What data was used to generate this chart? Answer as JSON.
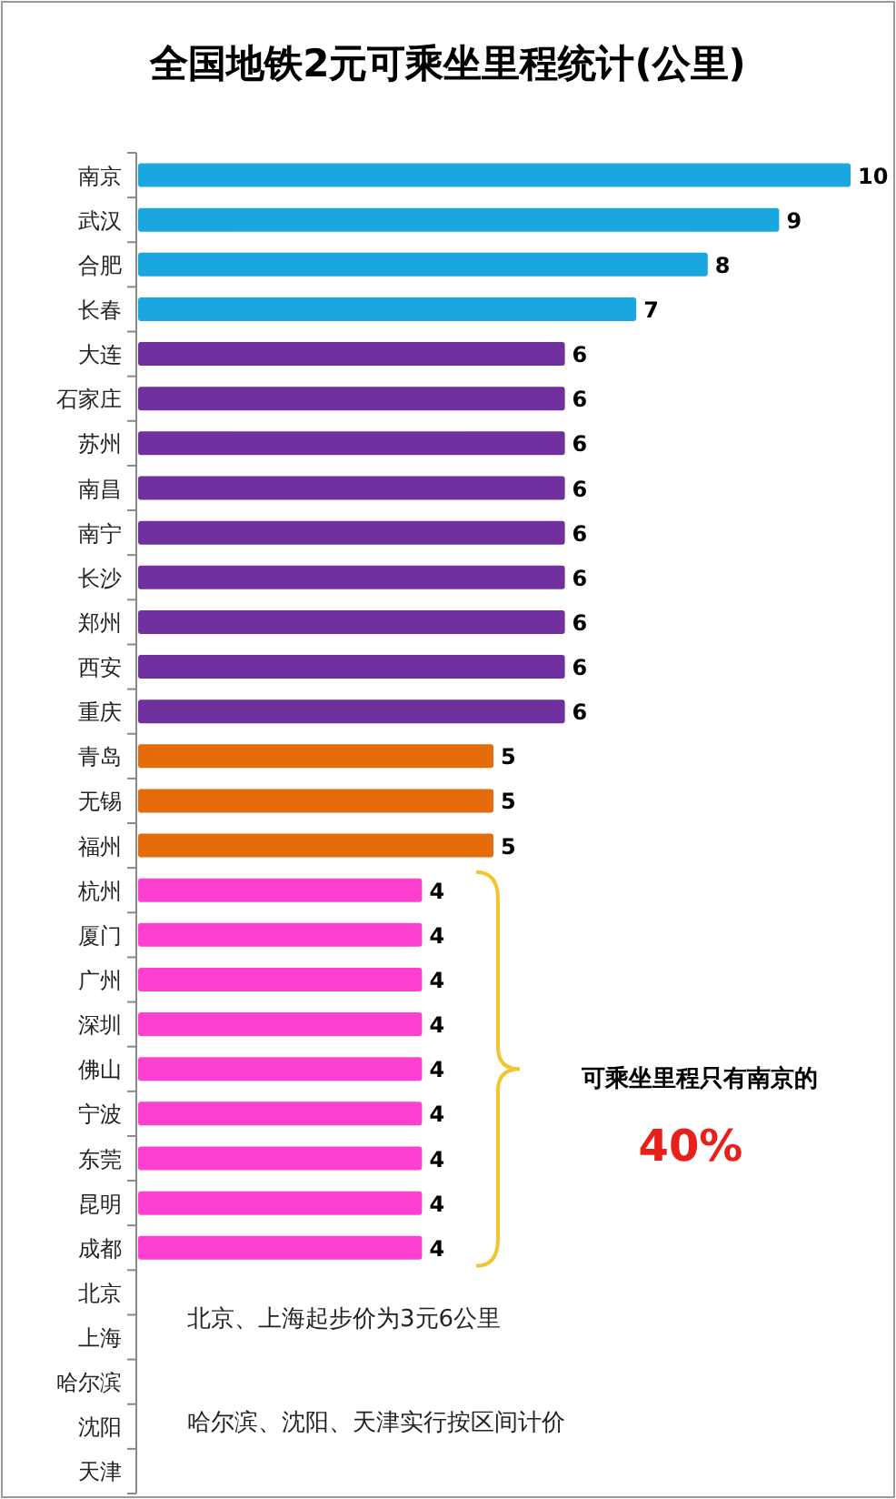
{
  "chart_data": {
    "type": "bar",
    "orientation": "horizontal",
    "title": "全国地铁2元可乘坐里程统计(公里)",
    "categories": [
      "南京",
      "武汉",
      "合肥",
      "长春",
      "大连",
      "石家庄",
      "苏州",
      "南昌",
      "南宁",
      "长沙",
      "郑州",
      "西安",
      "重庆",
      "青岛",
      "无锡",
      "福州",
      "杭州",
      "厦门",
      "广州",
      "深圳",
      "佛山",
      "宁波",
      "东莞",
      "昆明",
      "成都",
      "北京",
      "上海",
      "哈尔滨",
      "沈阳",
      "天津"
    ],
    "values": [
      10,
      9,
      8,
      7,
      6,
      6,
      6,
      6,
      6,
      6,
      6,
      6,
      6,
      5,
      5,
      5,
      4,
      4,
      4,
      4,
      4,
      4,
      4,
      4,
      4,
      null,
      null,
      null,
      null,
      null
    ],
    "colors": [
      "#1aa7e0",
      "#1aa7e0",
      "#1aa7e0",
      "#1aa7e0",
      "#7030a0",
      "#7030a0",
      "#7030a0",
      "#7030a0",
      "#7030a0",
      "#7030a0",
      "#7030a0",
      "#7030a0",
      "#7030a0",
      "#e46c0a",
      "#e46c0a",
      "#e46c0a",
      "#ff3fd0",
      "#ff3fd0",
      "#ff3fd0",
      "#ff3fd0",
      "#ff3fd0",
      "#ff3fd0",
      "#ff3fd0",
      "#ff3fd0",
      "#ff3fd0",
      null,
      null,
      null,
      null,
      null
    ],
    "data_labels": true,
    "tick_labels": "y",
    "annotations": [
      "可乘坐里程只有南京的",
      "40%",
      "北京、上海起步价为3元6公里",
      "哈尔滨、沈阳、天津实行按区间计价"
    ]
  }
}
